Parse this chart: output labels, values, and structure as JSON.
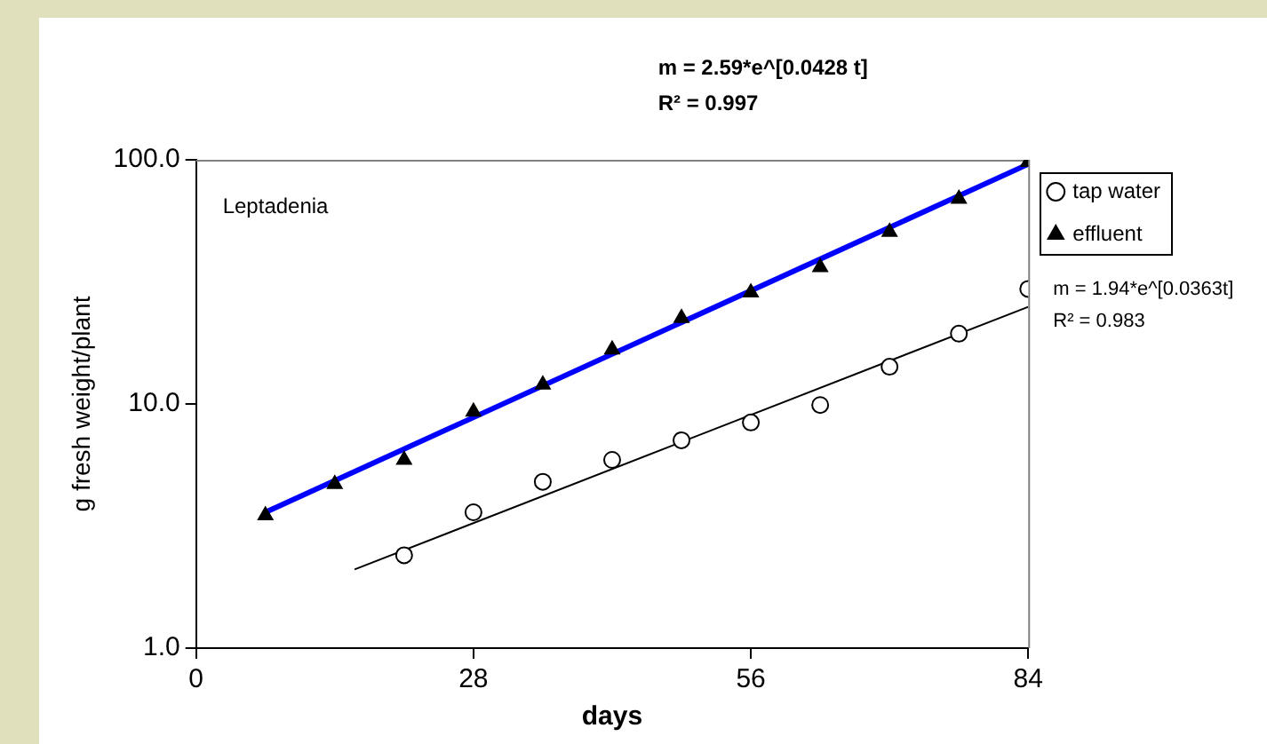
{
  "chart_data": {
    "type": "scatter",
    "xlabel": "days",
    "ylabel": "g fresh weight/plant",
    "xlim": [
      0,
      84
    ],
    "xticks": [
      0,
      28,
      56,
      84
    ],
    "ylim": [
      1,
      100
    ],
    "yticks": [
      {
        "value": 1,
        "label": "1.0"
      },
      {
        "value": 10,
        "label": "10.0"
      },
      {
        "value": 100,
        "label": "100.0"
      }
    ],
    "log": "y",
    "grid": false,
    "legend": "top right",
    "series": [
      {
        "name": "tap water",
        "type": "scatter",
        "marker": "circle",
        "color": "#000000",
        "x": [
          21,
          28,
          35,
          42,
          49,
          56,
          63,
          70,
          77,
          84
        ],
        "values": [
          2.4,
          3.6,
          4.8,
          5.9,
          7.1,
          8.4,
          9.9,
          14.2,
          19.4,
          29.6
        ]
      },
      {
        "name": "effluent",
        "type": "scatter",
        "marker": "triangle",
        "color": "#000000",
        "x": [
          7,
          14,
          21,
          28,
          35,
          42,
          49,
          56,
          63,
          70,
          77,
          84
        ],
        "values": [
          3.5,
          4.7,
          5.9,
          9.3,
          12.0,
          16.7,
          22.5,
          28.6,
          36.3,
          50.6,
          69.2,
          98
        ]
      },
      {
        "type": "line",
        "marker": "none",
        "color": "#0000ff",
        "x": [
          7,
          84
        ],
        "values": [
          3.6,
          96
        ]
      },
      {
        "type": "line",
        "marker": "none",
        "color": "#000000",
        "x": [
          16,
          84
        ],
        "values": [
          2.1,
          25
        ]
      }
    ],
    "annotations": [
      "Leptadenia",
      "m = 2.59*e^[0.0428 t]",
      "R² = 0.997",
      "m = 1.94*e^[0.0363t]",
      "R² = 0.983"
    ]
  }
}
